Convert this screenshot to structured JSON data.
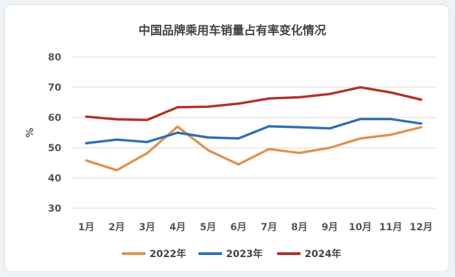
{
  "chart_data": {
    "type": "line",
    "title": "中国品牌乘用车销量占有率变化情况",
    "ylabel": "%",
    "xlabel": "",
    "ylim": [
      30,
      80
    ],
    "yticks": [
      "30",
      "40",
      "50",
      "60",
      "70",
      "80"
    ],
    "categories": [
      "1月",
      "2月",
      "3月",
      "4月",
      "5月",
      "6月",
      "7月",
      "8月",
      "9月",
      "10月",
      "11月",
      "12月"
    ],
    "grid": true,
    "legend_position": "bottom",
    "series": [
      {
        "name": "2022年",
        "color": "#e0914f",
        "values": [
          45.8,
          42.6,
          48.2,
          57.0,
          49.2,
          44.5,
          49.6,
          48.3,
          50.0,
          53.1,
          54.3,
          56.8
        ]
      },
      {
        "name": "2023年",
        "color": "#2e6fb5",
        "values": [
          51.5,
          52.7,
          51.9,
          55.0,
          53.4,
          53.1,
          57.1,
          56.8,
          56.4,
          59.5,
          59.5,
          58.0
        ]
      },
      {
        "name": "2024年",
        "color": "#b0322a",
        "values": [
          60.3,
          59.4,
          59.2,
          63.4,
          63.6,
          64.6,
          66.3,
          66.7,
          67.8,
          70.0,
          68.3,
          65.9
        ]
      }
    ]
  }
}
